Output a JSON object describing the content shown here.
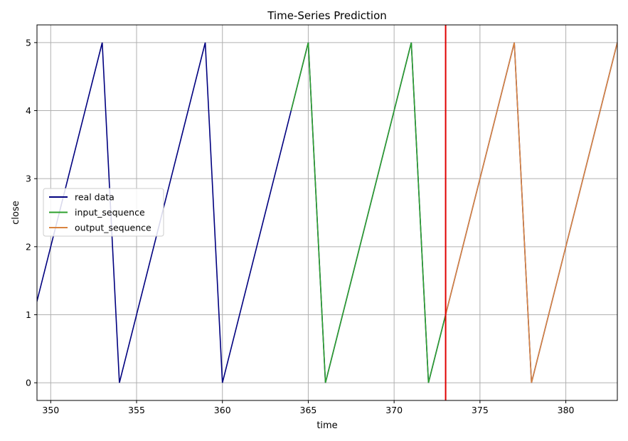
{
  "chart_data": {
    "type": "line",
    "title": "Time-Series Prediction",
    "xlabel": "time",
    "ylabel": "close",
    "xlim": [
      349.2,
      383
    ],
    "ylim": [
      -0.26,
      5.26
    ],
    "xticks": [
      350,
      355,
      360,
      365,
      370,
      375,
      380
    ],
    "yticks": [
      0,
      1,
      2,
      3,
      4,
      5
    ],
    "grid": true,
    "legend_position": "center-left",
    "vline": {
      "x": 373,
      "color": "#e00000"
    },
    "series": [
      {
        "name": "real data",
        "color": "#00007f",
        "x": [
          349,
          350,
          351,
          352,
          353,
          354,
          355,
          356,
          357,
          358,
          359,
          360,
          361,
          362,
          363,
          364,
          365,
          366,
          367,
          368,
          369,
          370,
          371,
          372,
          373,
          374,
          375,
          376,
          377,
          378,
          379,
          380,
          381,
          382,
          383
        ],
        "values": [
          1,
          2,
          3,
          4,
          5,
          0,
          1,
          2,
          3,
          4,
          5,
          0,
          1,
          2,
          3,
          4,
          5,
          0,
          1,
          2,
          3,
          4,
          5,
          0,
          1,
          2,
          3,
          4,
          5,
          0,
          1,
          2,
          3,
          4,
          5
        ]
      },
      {
        "name": "input_sequence",
        "color": "#2ca02c",
        "x": [
          364,
          365,
          366,
          367,
          368,
          369,
          370,
          371,
          372,
          373
        ],
        "values": [
          4,
          5,
          0,
          1,
          2,
          3,
          4,
          5,
          0,
          1
        ]
      },
      {
        "name": "output_sequence",
        "color": "#d9843f",
        "x": [
          373,
          374,
          375,
          376,
          377,
          378,
          379,
          380,
          381,
          382,
          383
        ],
        "values": [
          1,
          2,
          3,
          4,
          5,
          0,
          1,
          2,
          3,
          4,
          5
        ]
      }
    ]
  }
}
